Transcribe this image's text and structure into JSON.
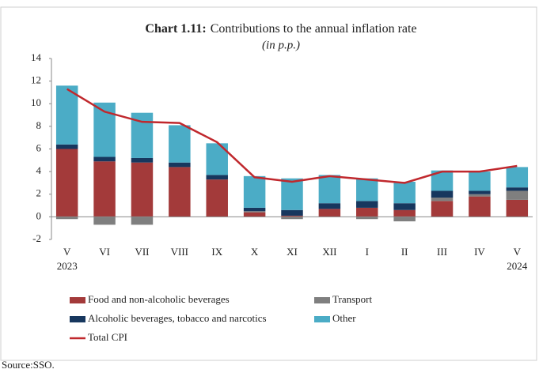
{
  "chart_data": {
    "type": "bar",
    "title_label": "Chart 1.11:",
    "title": "Contributions to the annual inflation rate",
    "subtitle": "(in p.p.)",
    "categories": [
      "V",
      "VI",
      "VII",
      "VIII",
      "IX",
      "X",
      "XI",
      "XII",
      "I",
      "II",
      "III",
      "IV",
      "V"
    ],
    "annotations": [
      "2023",
      "2024"
    ],
    "ylim": [
      -2,
      14
    ],
    "yticks": [
      -2,
      0,
      2,
      4,
      6,
      8,
      10,
      12,
      14
    ],
    "stacked": true,
    "series": [
      {
        "name": "Food and non-alcoholic beverages",
        "color": "#a33a3a",
        "values": [
          6.0,
          4.9,
          4.8,
          4.4,
          3.3,
          0.4,
          0.1,
          0.7,
          0.8,
          0.6,
          1.4,
          1.8,
          1.5
        ]
      },
      {
        "name": "Transport",
        "color": "#7f7f7f",
        "values": [
          -0.2,
          -0.7,
          -0.7,
          0.0,
          0.0,
          0.1,
          -0.2,
          0.0,
          -0.2,
          -0.4,
          0.3,
          0.2,
          0.8
        ]
      },
      {
        "name": "Alcoholic beverages, tobacco and narcotics",
        "color": "#17375e",
        "values": [
          0.4,
          0.4,
          0.4,
          0.4,
          0.4,
          0.3,
          0.5,
          0.5,
          0.6,
          0.6,
          0.6,
          0.3,
          0.3
        ]
      },
      {
        "name": "Other",
        "color": "#4bacc6",
        "values": [
          5.2,
          4.8,
          4.0,
          3.3,
          2.8,
          2.8,
          2.8,
          2.5,
          2.0,
          1.9,
          1.8,
          1.7,
          1.8
        ]
      },
      {
        "name": "Total CPI",
        "type": "line",
        "color": "#c0282d",
        "values": [
          11.3,
          9.3,
          8.4,
          8.3,
          6.6,
          3.5,
          3.1,
          3.6,
          3.3,
          3.0,
          4.0,
          4.0,
          4.5
        ]
      }
    ],
    "source": "Source:SSO."
  }
}
